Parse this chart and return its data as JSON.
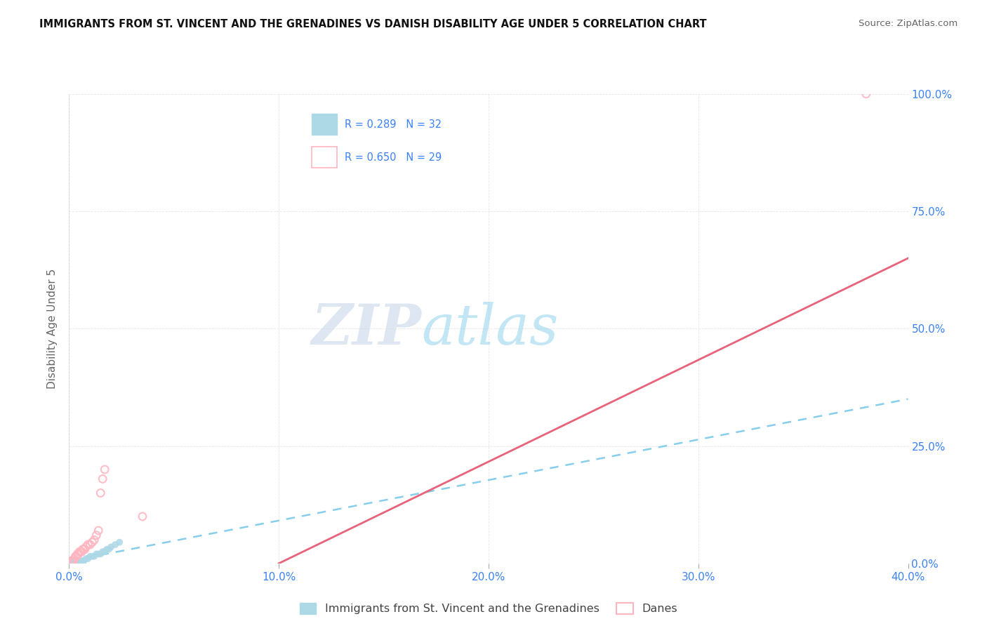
{
  "title": "IMMIGRANTS FROM ST. VINCENT AND THE GRENADINES VS DANISH DISABILITY AGE UNDER 5 CORRELATION CHART",
  "source": "Source: ZipAtlas.com",
  "ylabel": "Disability Age Under 5",
  "xlabel_ticks": [
    "0.0%",
    "10.0%",
    "20.0%",
    "30.0%",
    "40.0%"
  ],
  "ylabel_ticks_right": [
    "0.0%",
    "25.0%",
    "50.0%",
    "75.0%",
    "100.0%"
  ],
  "xlim": [
    0.0,
    0.4
  ],
  "ylim": [
    0.0,
    1.0
  ],
  "watermark_zip": "ZIP",
  "watermark_atlas": "atlas",
  "legend_line1": "R = 0.289   N = 32",
  "legend_line2": "R = 0.650   N = 29",
  "legend_label_blue": "Immigrants from St. Vincent and the Grenadines",
  "legend_label_pink": "Danes",
  "blue_scatter_x": [
    0.0008,
    0.001,
    0.0012,
    0.0015,
    0.0018,
    0.002,
    0.0022,
    0.0025,
    0.003,
    0.0035,
    0.004,
    0.0045,
    0.005,
    0.0055,
    0.006,
    0.0065,
    0.007,
    0.008,
    0.009,
    0.01,
    0.011,
    0.012,
    0.013,
    0.014,
    0.015,
    0.016,
    0.017,
    0.018,
    0.019,
    0.02,
    0.022,
    0.024
  ],
  "blue_scatter_y": [
    0.005,
    0.005,
    0.005,
    0.005,
    0.005,
    0.005,
    0.005,
    0.005,
    0.005,
    0.005,
    0.005,
    0.005,
    0.005,
    0.005,
    0.005,
    0.005,
    0.005,
    0.01,
    0.01,
    0.015,
    0.015,
    0.015,
    0.02,
    0.02,
    0.02,
    0.025,
    0.025,
    0.03,
    0.03,
    0.035,
    0.04,
    0.045
  ],
  "pink_scatter_x": [
    0.0008,
    0.001,
    0.0012,
    0.0015,
    0.0018,
    0.002,
    0.0025,
    0.003,
    0.0035,
    0.004,
    0.0045,
    0.005,
    0.0055,
    0.006,
    0.0065,
    0.007,
    0.0075,
    0.008,
    0.009,
    0.01,
    0.011,
    0.012,
    0.013,
    0.014,
    0.015,
    0.016,
    0.017,
    0.035,
    0.38
  ],
  "pink_scatter_y": [
    0.005,
    0.005,
    0.005,
    0.005,
    0.005,
    0.005,
    0.01,
    0.015,
    0.015,
    0.02,
    0.02,
    0.025,
    0.025,
    0.025,
    0.03,
    0.03,
    0.03,
    0.035,
    0.04,
    0.04,
    0.045,
    0.05,
    0.06,
    0.07,
    0.15,
    0.18,
    0.2,
    0.1,
    1.0
  ],
  "blue_line_x": [
    0.0,
    0.4
  ],
  "blue_line_y": [
    0.005,
    0.35
  ],
  "pink_line_x": [
    0.1,
    0.4
  ],
  "pink_line_y": [
    0.0,
    0.65
  ],
  "blue_scatter_color": "#ADD8E6",
  "pink_scatter_color": "#FFB6C1",
  "blue_line_color": "#87CEEB",
  "pink_line_color": "#E8627A",
  "text_color_blue": "#3B82F6",
  "text_color_dark": "#333333",
  "grid_color": "#E8E8E8",
  "background_color": "#FFFFFF"
}
